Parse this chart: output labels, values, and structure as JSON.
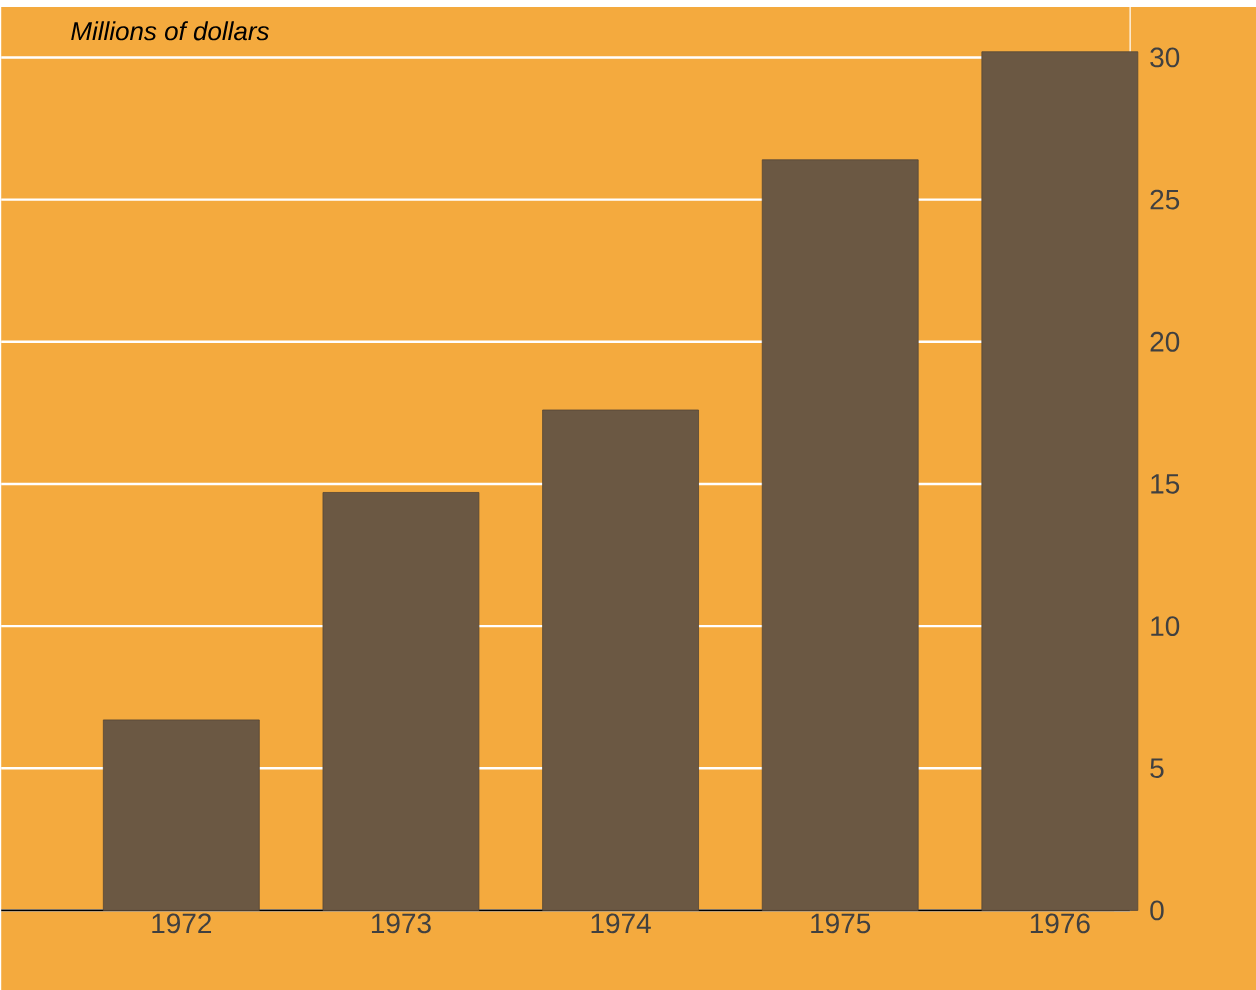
{
  "chart_data": {
    "type": "bar",
    "ylabel": "Millions of dollars",
    "categories": [
      "1972",
      "1973",
      "1974",
      "1975",
      "1976"
    ],
    "values": [
      6.7,
      14.7,
      17.6,
      26.4,
      30.2
    ],
    "color": "#6b5843",
    "ylim": [
      0,
      32
    ],
    "yticks": [
      0,
      5,
      10,
      15,
      20,
      25,
      30
    ],
    "grid": "y"
  }
}
